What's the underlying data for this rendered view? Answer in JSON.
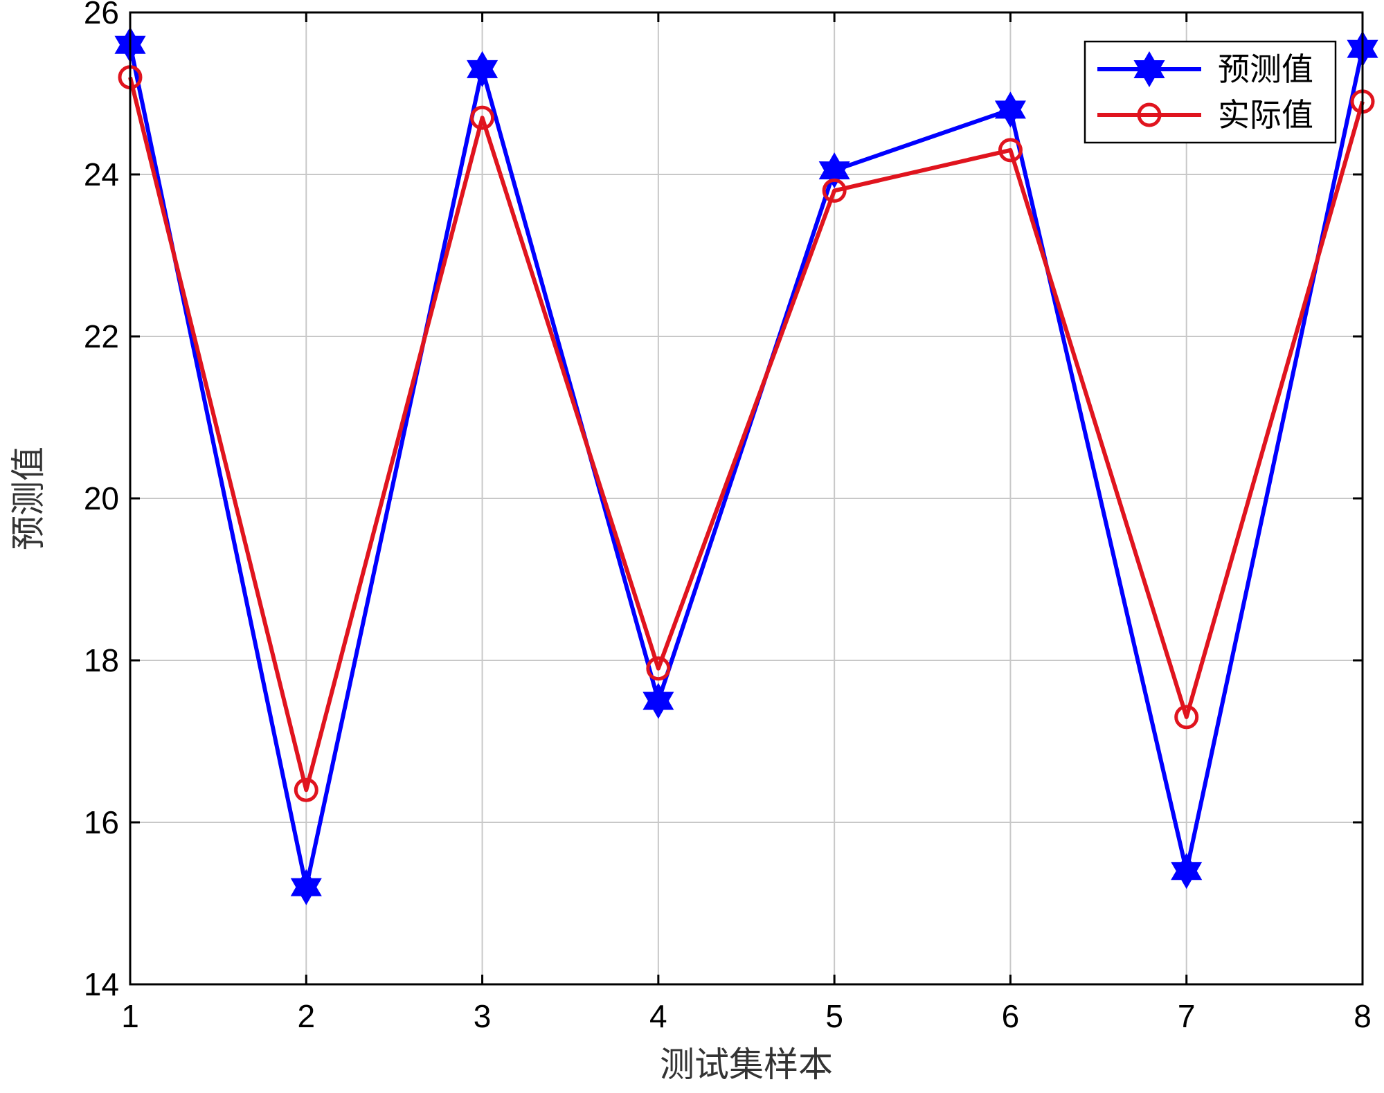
{
  "chart_data": {
    "type": "line",
    "title": "",
    "xlabel": "测试集样本",
    "ylabel": "预测值",
    "x": [
      1,
      2,
      3,
      4,
      5,
      6,
      7,
      8
    ],
    "xlim": [
      1,
      8
    ],
    "ylim": [
      14,
      26
    ],
    "xticks": [
      "1",
      "2",
      "3",
      "4",
      "5",
      "6",
      "7",
      "8"
    ],
    "yticks": [
      "14",
      "16",
      "18",
      "20",
      "22",
      "24",
      "26"
    ],
    "ytick_values": [
      14,
      16,
      18,
      20,
      22,
      24,
      26
    ],
    "grid": true,
    "legend_position": "top-right",
    "series": [
      {
        "name": "预测值",
        "color": "#0000ff",
        "marker": "hexagram",
        "values": [
          25.6,
          15.2,
          25.3,
          17.5,
          24.05,
          24.8,
          15.4,
          25.55
        ]
      },
      {
        "name": "实际值",
        "color": "#e0141e",
        "marker": "circle",
        "values": [
          25.2,
          16.4,
          24.7,
          17.9,
          23.8,
          24.3,
          17.3,
          24.9
        ]
      }
    ]
  }
}
